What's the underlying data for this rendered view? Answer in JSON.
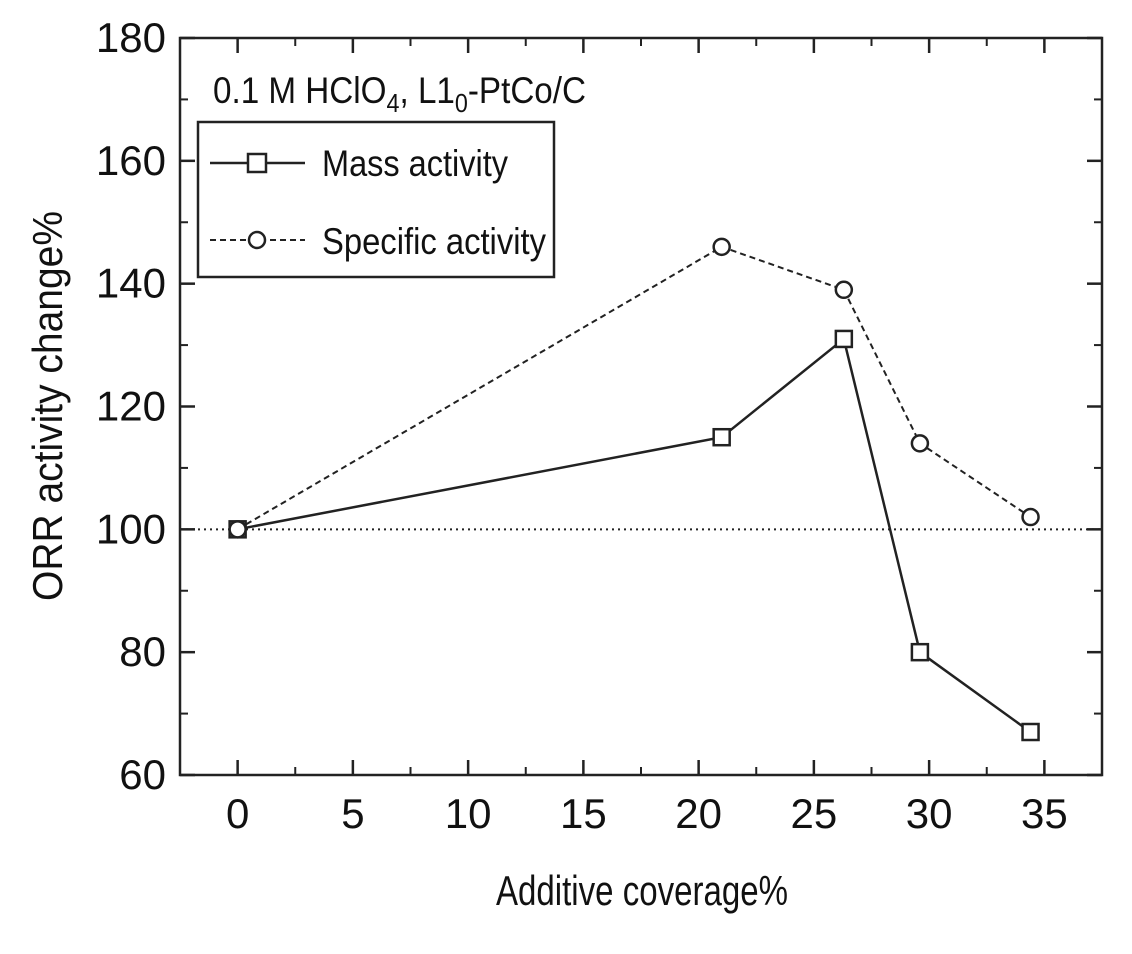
{
  "chart_data": {
    "type": "line",
    "annotation": "0.1 M HClO4, L10-PtCo/C",
    "annotation_parts": {
      "text1": "0.1 M HClO",
      "sub1": "4",
      "text2": ", L1",
      "sub2": "0",
      "text3": "-PtCo/C"
    },
    "xlabel": "Additive coverage%",
    "ylabel": "ORR activity change%",
    "xlim": [
      -2.5,
      37.5
    ],
    "ylim": [
      60,
      180
    ],
    "xticks": [
      0,
      5,
      10,
      15,
      20,
      25,
      30,
      35
    ],
    "yticks": [
      60,
      80,
      100,
      120,
      140,
      160,
      180
    ],
    "reference_line": {
      "y": 100,
      "style": "dotted"
    },
    "legend": {
      "placement": "top-left"
    },
    "series": [
      {
        "name": "Mass activity",
        "marker": "square",
        "line_style": "solid",
        "x": [
          0,
          21.0,
          26.3,
          29.6,
          34.4
        ],
        "y": [
          100,
          115,
          131,
          80,
          67
        ]
      },
      {
        "name": "Specific activity",
        "marker": "circle",
        "line_style": "dashed",
        "x": [
          0,
          21.0,
          26.3,
          29.6,
          34.4
        ],
        "y": [
          100,
          146,
          139,
          114,
          102
        ]
      }
    ]
  }
}
